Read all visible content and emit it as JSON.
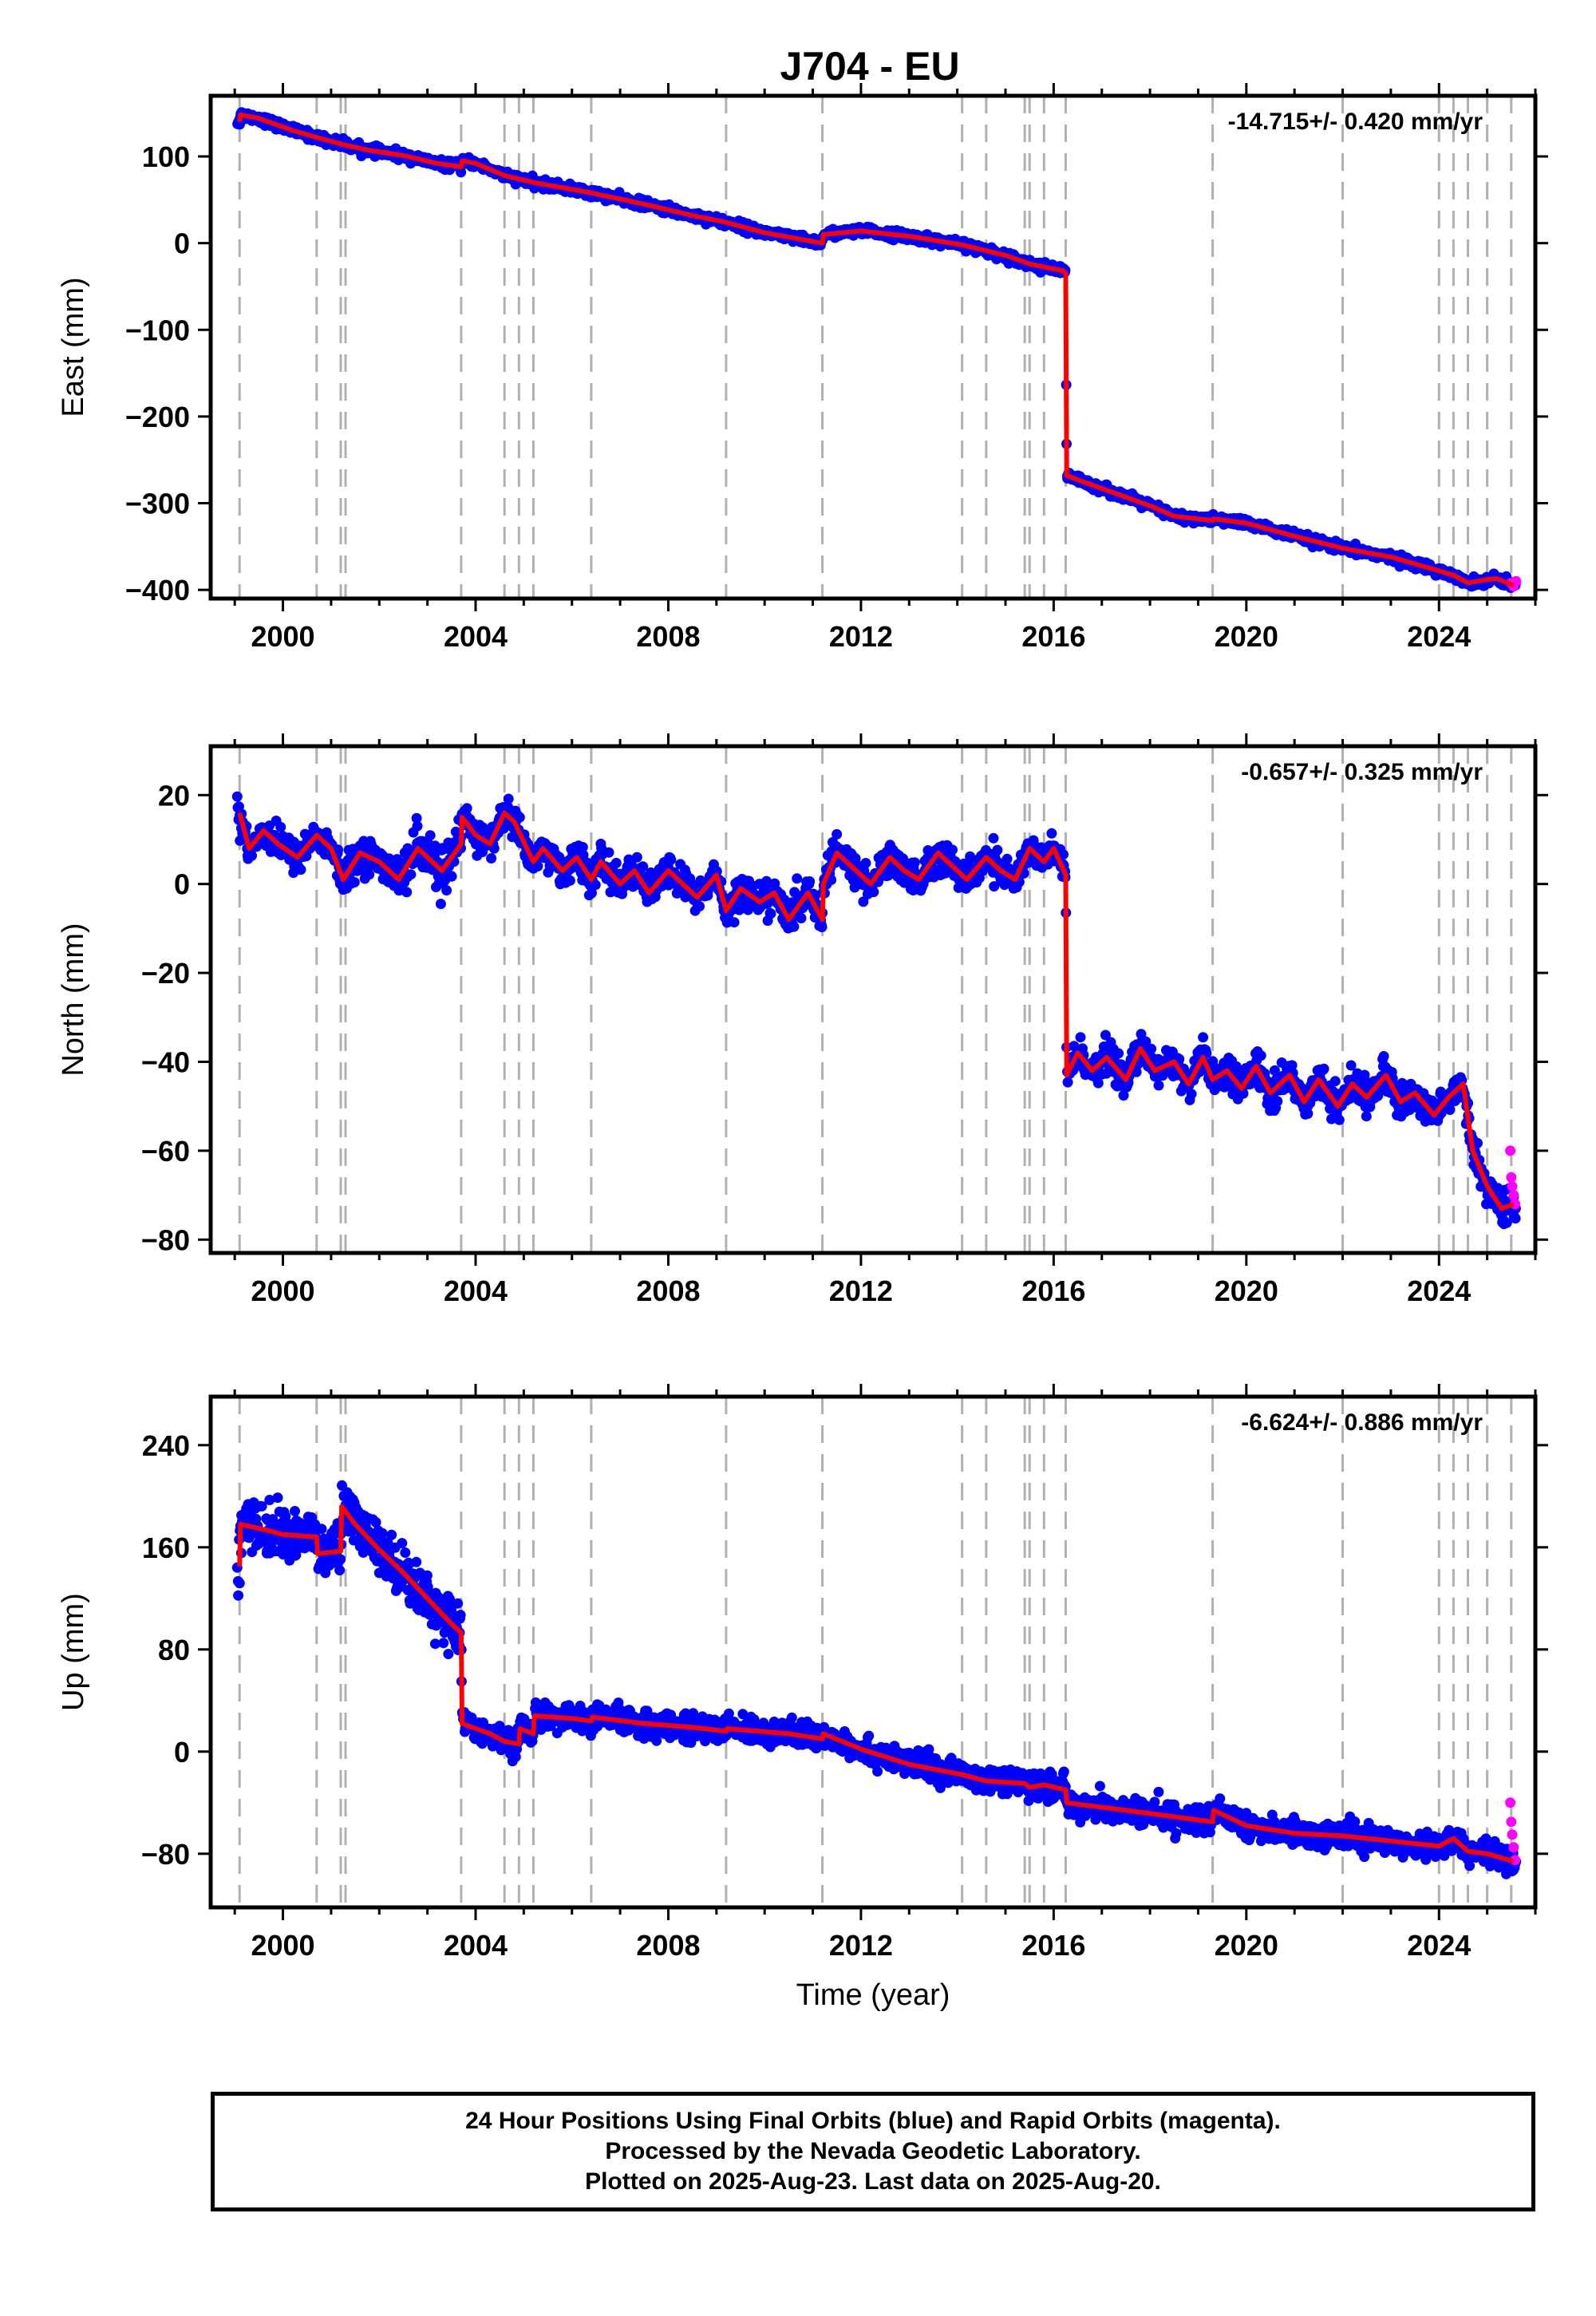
{
  "title": "J704 - EU",
  "caption": [
    "24 Hour Positions Using Final Orbits (blue) and Rapid Orbits (magenta).",
    "Processed by the Nevada Geodetic Laboratory.",
    "Plotted on 2025-Aug-23. Last data on 2025-Aug-20."
  ],
  "colors": {
    "final": "#0000ff",
    "rapid": "#ff00ff",
    "model": "#ff0000",
    "event_lines": "#b0b0b0"
  },
  "chart_data": [
    {
      "type": "scatter",
      "component": "East",
      "ylabel": "East (mm)",
      "xlabel": "",
      "xlim": [
        1998.5,
        2026.0
      ],
      "ylim": [
        -410,
        170
      ],
      "yticks": [
        -400,
        -300,
        -200,
        -100,
        0,
        100
      ],
      "ytick_labels": [
        "−400",
        "−300",
        "−200",
        "−100",
        "0",
        "100"
      ],
      "xticks": [
        2000,
        2004,
        2008,
        2012,
        2016,
        2020,
        2024
      ],
      "xtick_labels": [
        "2000",
        "2004",
        "2008",
        "2012",
        "2016",
        "2020",
        "2024"
      ],
      "rate_text": "-14.715+/- 0.420 mm/yr",
      "event_lines": [
        1999.1,
        2000.7,
        2001.2,
        2001.3,
        2003.7,
        2004.6,
        2004.9,
        2005.2,
        2006.4,
        2009.2,
        2011.2,
        2014.1,
        2014.6,
        2015.4,
        2015.5,
        2015.8,
        2016.25,
        2019.3,
        2022.0,
        2024.0,
        2024.3,
        2024.6,
        2025.0,
        2025.5
      ],
      "model_x": [
        1999.1,
        1999.12,
        1999.5,
        2000.2,
        2000.7,
        2001.3,
        2001.8,
        2002.5,
        2003.2,
        2003.7,
        2003.72,
        2004.0,
        2004.6,
        2005.2,
        2006.4,
        2007.5,
        2008.5,
        2009.2,
        2010.0,
        2011.2,
        2011.22,
        2012.0,
        2013.0,
        2014.1,
        2015.0,
        2015.5,
        2016.2,
        2016.25,
        2016.27,
        2016.5,
        2017.2,
        2018.0,
        2018.5,
        2019.3,
        2019.32,
        2020.0,
        2021.0,
        2022.0,
        2023.0,
        2024.0,
        2024.3,
        2024.6,
        2025.0,
        2025.2,
        2025.55
      ],
      "model_y": [
        140,
        148,
        144,
        130,
        122,
        113,
        107,
        101,
        92,
        88,
        95,
        92,
        78,
        70,
        58,
        45,
        32,
        24,
        12,
        0,
        10,
        14,
        8,
        -2,
        -14,
        -24,
        -32,
        -35,
        -268,
        -273,
        -287,
        -303,
        -315,
        -320,
        -318,
        -323,
        -338,
        -352,
        -362,
        -378,
        -383,
        -392,
        -388,
        -387,
        -395
      ],
      "scatter_sigma": 4.5,
      "scatter_xlim": [
        1999.05,
        2025.6
      ],
      "rapid_x": [
        2025.5,
        2025.55,
        2025.6
      ],
      "rapid_y": [
        -392,
        -396,
        -390
      ]
    },
    {
      "type": "scatter",
      "component": "North",
      "ylabel": "North (mm)",
      "xlabel": "",
      "xlim": [
        1998.5,
        2026.0
      ],
      "ylim": [
        -83,
        31
      ],
      "yticks": [
        -80,
        -60,
        -40,
        -20,
        0,
        20
      ],
      "ytick_labels": [
        "−80",
        "−60",
        "−40",
        "−20",
        "0",
        "20"
      ],
      "xticks": [
        2000,
        2004,
        2008,
        2012,
        2016,
        2020,
        2024
      ],
      "xtick_labels": [
        "2000",
        "2004",
        "2008",
        "2012",
        "2016",
        "2020",
        "2024"
      ],
      "rate_text": "-0.657+/- 0.325 mm/yr",
      "event_lines": [
        1999.1,
        2000.7,
        2001.2,
        2001.3,
        2003.7,
        2004.6,
        2004.9,
        2005.2,
        2006.4,
        2009.2,
        2011.2,
        2014.1,
        2014.6,
        2015.4,
        2015.5,
        2015.8,
        2016.25,
        2019.3,
        2022.0,
        2024.0,
        2024.3,
        2024.6,
        2025.0,
        2025.5
      ],
      "model_x": [
        1999.1,
        1999.3,
        1999.6,
        1999.9,
        2000.3,
        2000.7,
        2001.0,
        2001.25,
        2001.6,
        2002.0,
        2002.4,
        2002.8,
        2003.1,
        2003.3,
        2003.7,
        2003.72,
        2004.0,
        2004.3,
        2004.6,
        2004.8,
        2005.2,
        2005.4,
        2005.8,
        2006.1,
        2006.4,
        2006.6,
        2007.0,
        2007.3,
        2007.6,
        2008.0,
        2008.3,
        2008.6,
        2009.0,
        2009.2,
        2009.5,
        2009.9,
        2010.2,
        2010.5,
        2010.9,
        2011.2,
        2011.22,
        2011.5,
        2011.9,
        2012.2,
        2012.6,
        2012.9,
        2013.2,
        2013.6,
        2013.9,
        2014.2,
        2014.6,
        2014.9,
        2015.2,
        2015.5,
        2015.8,
        2016.0,
        2016.25,
        2016.27,
        2016.5,
        2016.8,
        2017.1,
        2017.5,
        2017.8,
        2018.1,
        2018.5,
        2018.8,
        2019.1,
        2019.3,
        2019.6,
        2019.9,
        2020.2,
        2020.5,
        2020.9,
        2021.2,
        2021.5,
        2021.9,
        2022.2,
        2022.5,
        2022.9,
        2023.2,
        2023.5,
        2023.9,
        2024.2,
        2024.5,
        2024.7,
        2025.0,
        2025.3,
        2025.55
      ],
      "model_y": [
        16,
        8,
        12,
        9,
        6,
        11,
        8,
        1,
        7,
        5,
        1,
        8,
        5,
        3,
        9,
        15,
        11,
        9,
        16,
        14,
        5,
        8,
        3,
        6,
        1,
        5,
        0,
        3,
        -2,
        3,
        0,
        -3,
        2,
        -6,
        -1,
        -4,
        -2,
        -8,
        -2,
        -8,
        0,
        7,
        3,
        0,
        6,
        3,
        1,
        7,
        4,
        1,
        6,
        3,
        1,
        8,
        5,
        8,
        2,
        -43,
        -38,
        -42,
        -39,
        -44,
        -37,
        -42,
        -40,
        -45,
        -39,
        -44,
        -42,
        -46,
        -41,
        -47,
        -43,
        -49,
        -44,
        -50,
        -45,
        -48,
        -43,
        -49,
        -47,
        -52,
        -48,
        -45,
        -60,
        -68,
        -73,
        -72
      ],
      "scatter_sigma": 3.2,
      "scatter_xlim": [
        1999.05,
        2025.6
      ],
      "rapid_x": [
        2025.48,
        2025.5,
        2025.52,
        2025.55,
        2025.58
      ],
      "rapid_y": [
        -60,
        -66,
        -68,
        -70,
        -72
      ]
    },
    {
      "type": "scatter",
      "component": "Up",
      "ylabel": "Up (mm)",
      "xlabel": "Time (year)",
      "xlim": [
        1998.5,
        2026.0
      ],
      "ylim": [
        -122,
        278
      ],
      "yticks": [
        -80,
        0,
        80,
        160,
        240
      ],
      "ytick_labels": [
        "−80",
        "0",
        "80",
        "160",
        "240"
      ],
      "xticks": [
        2000,
        2004,
        2008,
        2012,
        2016,
        2020,
        2024
      ],
      "xtick_labels": [
        "2000",
        "2004",
        "2008",
        "2012",
        "2016",
        "2020",
        "2024"
      ],
      "rate_text": "-6.624+/- 0.886 mm/yr",
      "event_lines": [
        1999.1,
        2000.7,
        2001.2,
        2001.3,
        2003.7,
        2004.6,
        2004.9,
        2005.2,
        2006.4,
        2009.2,
        2011.2,
        2014.1,
        2014.6,
        2015.4,
        2015.5,
        2015.8,
        2016.25,
        2019.3,
        2022.0,
        2024.0,
        2024.3,
        2024.6,
        2025.0,
        2025.5
      ],
      "model_x": [
        1999.1,
        1999.12,
        1999.6,
        2000.0,
        2000.7,
        2000.72,
        2001.2,
        2001.22,
        2001.5,
        2002.0,
        2002.5,
        2003.0,
        2003.5,
        2003.7,
        2003.72,
        2004.3,
        2004.6,
        2004.9,
        2004.92,
        2005.2,
        2005.22,
        2006.0,
        2006.4,
        2006.42,
        2007.5,
        2008.5,
        2009.2,
        2009.22,
        2010.5,
        2011.2,
        2011.22,
        2012.0,
        2013.0,
        2014.1,
        2014.6,
        2015.4,
        2015.5,
        2015.8,
        2016.25,
        2016.27,
        2017.5,
        2018.5,
        2019.3,
        2019.32,
        2020.0,
        2021.0,
        2022.0,
        2023.0,
        2024.0,
        2024.3,
        2024.6,
        2025.0,
        2025.55
      ],
      "model_y": [
        145,
        178,
        174,
        170,
        168,
        155,
        157,
        192,
        178,
        158,
        140,
        120,
        100,
        93,
        22,
        14,
        8,
        6,
        18,
        14,
        28,
        26,
        24,
        27,
        22,
        19,
        16,
        18,
        14,
        10,
        14,
        2,
        -10,
        -18,
        -23,
        -25,
        -28,
        -26,
        -30,
        -40,
        -46,
        -51,
        -55,
        -46,
        -58,
        -64,
        -66,
        -70,
        -74,
        -68,
        -78,
        -80,
        -86
      ],
      "scatter_sigma": 9.0,
      "scatter_xlim": [
        1999.05,
        2025.6
      ],
      "rapid_x": [
        2025.48,
        2025.5,
        2025.52,
        2025.55,
        2025.58
      ],
      "rapid_y": [
        -40,
        -55,
        -65,
        -75,
        -85
      ]
    }
  ]
}
